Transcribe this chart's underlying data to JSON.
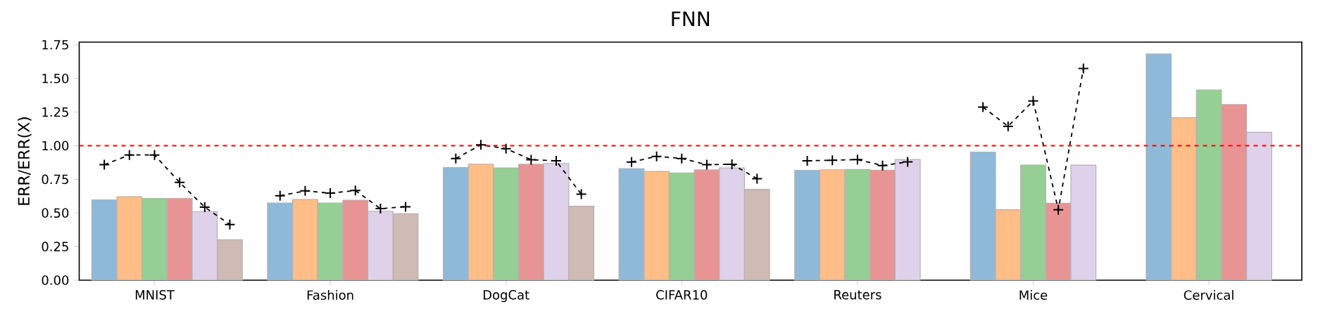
{
  "chart_data": {
    "type": "bar",
    "title": "FNN",
    "ylabel": "ERR/ERR(X)",
    "categories": [
      null,
      null,
      "MNIST",
      null,
      null,
      null,
      null,
      null,
      null,
      "Fashion",
      null,
      null,
      null,
      null,
      null,
      null,
      "DogCat",
      null,
      null,
      null,
      null,
      null,
      null,
      "CIFAR10",
      null,
      null,
      null,
      null,
      null,
      null,
      "Reuters",
      null,
      null,
      null,
      null,
      null,
      null,
      "Mice",
      null,
      null,
      null,
      null,
      null,
      null,
      "Cervical",
      null,
      null,
      null,
      null
    ],
    "series": [
      {
        "values": [
          0.597,
          0.621,
          0.608,
          0.608,
          0.509,
          0.301,
          null,
          0.574,
          0.6,
          0.574,
          0.595,
          0.513,
          0.494,
          null,
          0.838,
          0.862,
          0.835,
          0.862,
          0.868,
          0.55,
          null,
          0.829,
          0.809,
          0.797,
          0.82,
          0.835,
          0.675,
          null,
          0.816,
          0.821,
          0.823,
          0.818,
          0.897,
          null,
          null,
          0.952,
          0.524,
          0.856,
          0.572,
          0.856,
          null,
          null,
          1.682,
          1.208,
          1.414,
          1.306,
          1.1,
          null,
          null
        ],
        "colors": [
          "#8fb9d8",
          "#ffbd87",
          "#96cf94",
          "#e99494",
          "#dfd1ea",
          "#cfbab5",
          null,
          "#8fb9d8",
          "#ffbd87",
          "#96cf94",
          "#e99494",
          "#dfd1ea",
          "#cfbab5",
          null,
          "#8fb9d8",
          "#ffbd87",
          "#96cf94",
          "#e99494",
          "#dfd1ea",
          "#cfbab5",
          null,
          "#8fb9d8",
          "#ffbd87",
          "#96cf94",
          "#e99494",
          "#dfd1ea",
          "#cfbab5",
          null,
          "#8fb9d8",
          "#ffbd87",
          "#96cf94",
          "#e99494",
          "#dfd1ea",
          null,
          null,
          "#8fb9d8",
          "#ffbd87",
          "#96cf94",
          "#e99494",
          "#dfd1ea",
          null,
          null,
          "#8fb9d8",
          "#ffbd87",
          "#96cf94",
          "#e99494",
          "#dfd1ea",
          null,
          null
        ]
      },
      {
        "type": "line",
        "color": "#000000",
        "marker": "cross",
        "line_style": "dashed",
        "values": [
          0.859,
          0.931,
          0.931,
          0.727,
          0.543,
          0.414,
          null,
          0.628,
          0.664,
          0.647,
          0.667,
          0.532,
          0.546,
          null,
          0.905,
          1.006,
          0.978,
          0.896,
          0.887,
          0.639,
          null,
          0.879,
          0.92,
          0.905,
          0.859,
          0.862,
          0.755,
          null,
          0.888,
          0.892,
          0.897,
          0.852,
          0.88,
          null,
          null,
          1.287,
          1.144,
          1.333,
          0.524,
          1.574,
          null,
          null,
          null,
          null,
          null,
          null,
          null,
          null,
          null
        ]
      }
    ],
    "ylim": [
      0,
      1.77
    ],
    "yticks": [
      {
        "value": 0,
        "label": "0.00"
      },
      {
        "value": 0.25,
        "label": "0.25"
      },
      {
        "value": 0.5,
        "label": "0.50"
      },
      {
        "value": 0.75,
        "label": "0.75"
      },
      {
        "value": 1,
        "label": "1.00"
      },
      {
        "value": 1.25,
        "label": "1.25"
      },
      {
        "value": 1.5,
        "label": "1.50"
      },
      {
        "value": 1.75,
        "label": "1.75"
      }
    ],
    "ref_lines": [
      {
        "axis": "y",
        "value": 1,
        "color": "#ff0000",
        "line_style": "dashed"
      }
    ]
  }
}
